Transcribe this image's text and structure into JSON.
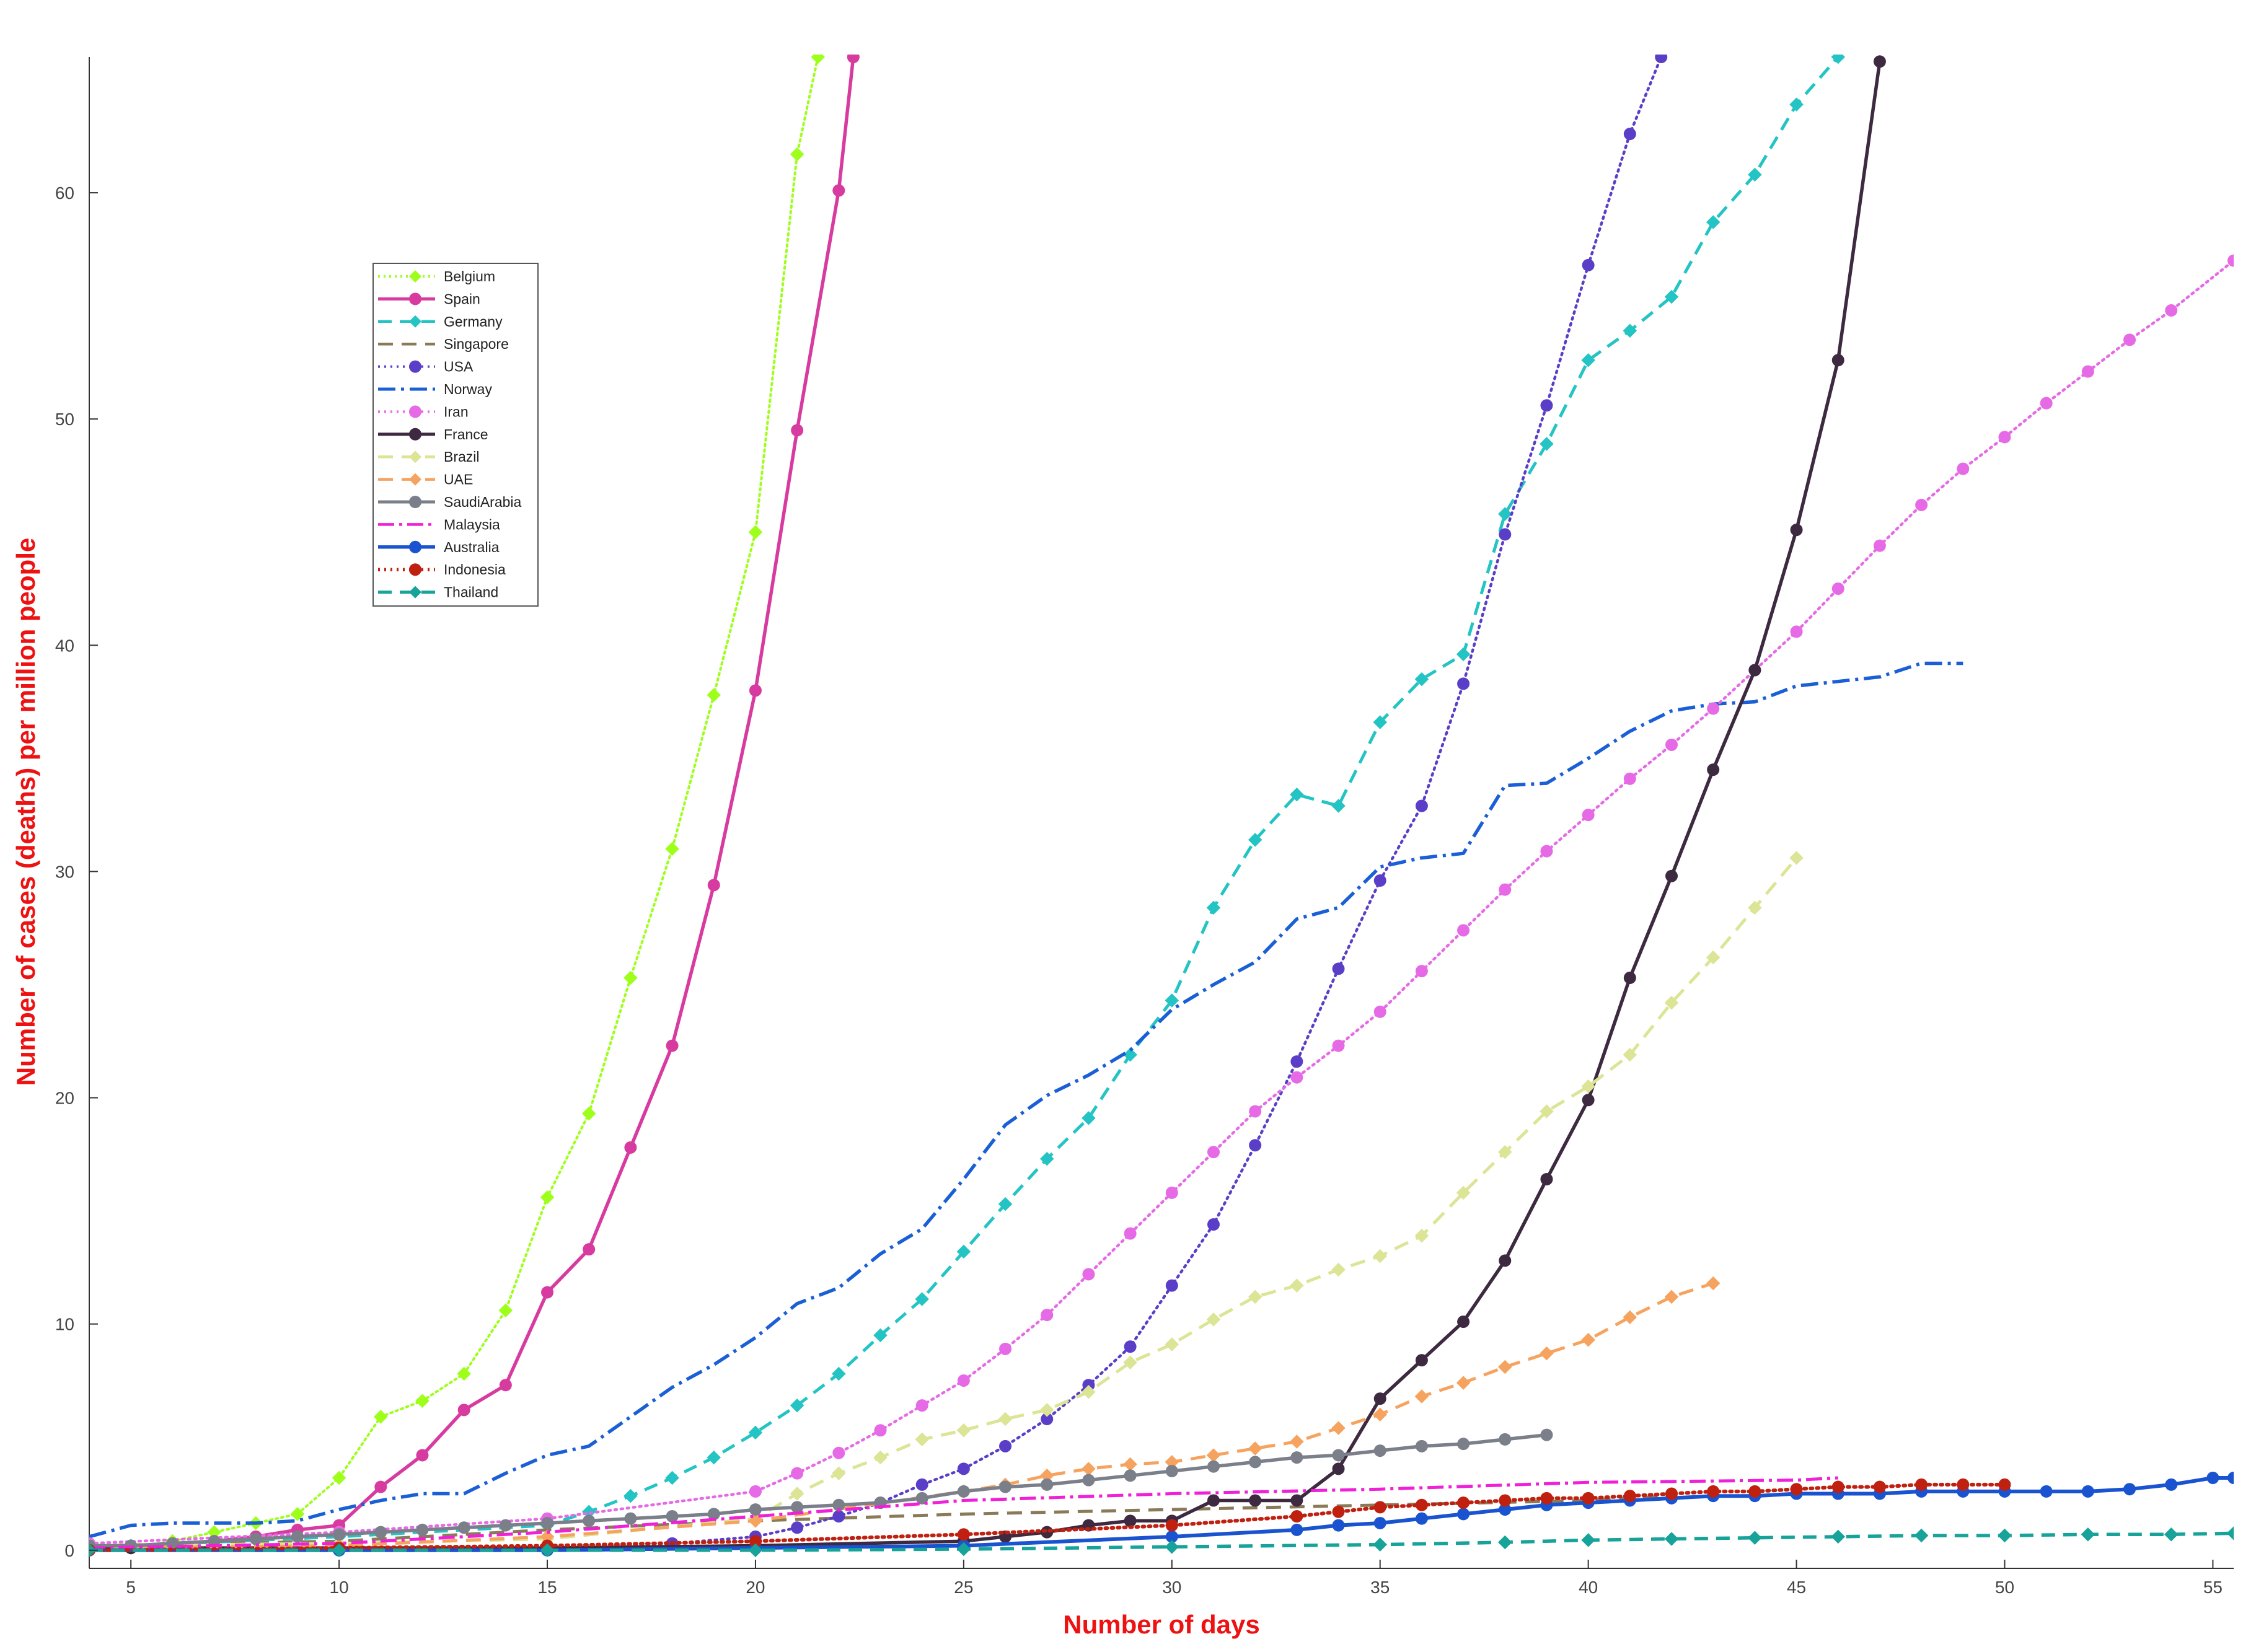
{
  "chart_data": {
    "type": "line",
    "title": "",
    "xlabel": "Number of days",
    "ylabel": "Number of cases (deaths) per million people",
    "xlim": [
      4,
      55.5
    ],
    "ylim": [
      -0.8,
      66
    ],
    "xticks": [
      "5",
      "10",
      "15",
      "20",
      "25",
      "30",
      "35",
      "40",
      "45",
      "50",
      "55"
    ],
    "yticks": [
      "0",
      "10",
      "20",
      "30",
      "40",
      "50",
      "60"
    ],
    "grid": false,
    "legend_position": "upper-left",
    "series": [
      {
        "name": "Belgium",
        "color": "#9dff1a",
        "dash": "3 6",
        "marker": "diamond",
        "width": 4,
        "x": [
          4,
          5,
          6,
          7,
          8,
          9,
          10,
          11,
          12,
          13,
          14,
          15,
          16,
          17,
          18,
          19,
          20,
          21,
          21.5
        ],
        "y": [
          0.1,
          0.1,
          0.4,
          0.8,
          1.2,
          1.6,
          3.2,
          5.9,
          6.6,
          7.8,
          10.6,
          15.6,
          19.3,
          25.3,
          31.0,
          37.8,
          45.0,
          61.7,
          66
        ]
      },
      {
        "name": "Spain",
        "color": "#d83ba0",
        "dash": "",
        "marker": "circle",
        "width": 5.5,
        "x": [
          4,
          5,
          6,
          7,
          8,
          9,
          10,
          11,
          12,
          13,
          14,
          15,
          16,
          17,
          18,
          19,
          20,
          21,
          22,
          22.35
        ],
        "y": [
          0.2,
          0.2,
          0.3,
          0.4,
          0.6,
          0.9,
          1.1,
          2.8,
          4.2,
          6.2,
          7.3,
          11.4,
          13.3,
          17.8,
          22.3,
          29.4,
          38.0,
          49.5,
          60.1,
          66
        ]
      },
      {
        "name": "Germany",
        "color": "#24c4c4",
        "dash": "22 13",
        "marker": "diamond",
        "width": 5,
        "x": [
          5,
          10,
          15,
          16,
          17,
          18,
          19,
          20,
          21,
          22,
          23,
          24,
          25,
          26,
          27,
          28,
          29,
          30,
          31,
          32,
          33,
          34,
          35,
          36,
          37,
          38,
          39,
          40,
          41,
          42,
          43,
          44,
          45,
          46
        ],
        "y": [
          0.2,
          0.6,
          1.1,
          1.7,
          2.4,
          3.2,
          4.1,
          5.2,
          6.4,
          7.8,
          9.5,
          11.1,
          13.2,
          15.3,
          17.3,
          19.1,
          21.9,
          24.3,
          28.4,
          31.4,
          33.4,
          32.9,
          36.6,
          38.5,
          39.6,
          45.8,
          48.9,
          52.6,
          53.9,
          55.4,
          58.7,
          60.8,
          63.9,
          66
        ]
      },
      {
        "name": "Singapore",
        "color": "#8a7a58",
        "dash": "24 14",
        "marker": "none",
        "width": 5,
        "x": [
          4,
          10,
          15,
          20,
          25,
          30,
          35,
          40,
          41,
          42
        ],
        "y": [
          0.2,
          0.4,
          0.9,
          1.3,
          1.6,
          1.8,
          2.0,
          2.2,
          2.3,
          2.4
        ]
      },
      {
        "name": "USA",
        "color": "#5b3ec7",
        "dash": "3 7",
        "marker": "circle",
        "width": 4.5,
        "x": [
          4,
          10,
          15,
          18,
          20,
          21,
          22,
          23,
          24,
          25,
          26,
          27,
          28,
          29,
          30,
          31,
          32,
          33,
          34,
          35,
          36,
          37,
          38,
          39,
          40,
          41,
          41.75
        ],
        "y": [
          0.0,
          0.0,
          0.1,
          0.3,
          0.6,
          1.0,
          1.5,
          2.1,
          2.9,
          3.6,
          4.6,
          5.8,
          7.3,
          9.0,
          11.7,
          14.4,
          17.9,
          21.6,
          25.7,
          29.6,
          32.9,
          38.3,
          44.9,
          50.6,
          56.8,
          62.6,
          66
        ]
      },
      {
        "name": "Norway",
        "color": "#1a5fd6",
        "dash": "28 9 5 9",
        "marker": "none",
        "width": 5.5,
        "x": [
          4,
          5,
          6,
          7,
          8,
          9,
          10,
          11,
          12,
          13,
          14,
          15,
          16,
          17,
          18,
          19,
          20,
          21,
          22,
          23,
          24,
          25,
          26,
          27,
          28,
          29,
          30,
          31,
          32,
          33,
          34,
          35,
          36,
          37,
          38,
          39,
          40,
          41,
          42,
          43,
          44,
          45,
          46,
          47,
          48,
          49
        ],
        "y": [
          0.6,
          1.1,
          1.2,
          1.2,
          1.2,
          1.3,
          1.8,
          2.2,
          2.5,
          2.5,
          3.4,
          4.2,
          4.6,
          5.9,
          7.2,
          8.2,
          9.4,
          10.9,
          11.6,
          13.1,
          14.2,
          16.4,
          18.8,
          20.1,
          21.0,
          22.1,
          23.9,
          25.0,
          26.0,
          27.9,
          28.4,
          30.2,
          30.6,
          30.8,
          33.8,
          33.9,
          35.0,
          36.2,
          37.1,
          37.4,
          37.5,
          38.2,
          38.4,
          38.6,
          39.2,
          39.2
        ]
      },
      {
        "name": "Iran",
        "color": "#e66ae6",
        "dash": "3 7",
        "marker": "circle",
        "width": 4.5,
        "x": [
          4,
          10,
          15,
          20,
          21,
          22,
          23,
          24,
          25,
          26,
          27,
          28,
          29,
          30,
          31,
          32,
          33,
          34,
          35,
          36,
          37,
          38,
          39,
          40,
          41,
          42,
          43,
          44,
          45,
          46,
          47,
          48,
          49,
          50,
          51,
          52,
          53,
          54,
          55.5
        ],
        "y": [
          0.3,
          0.8,
          1.4,
          2.6,
          3.4,
          4.3,
          5.3,
          6.4,
          7.5,
          8.9,
          10.4,
          12.2,
          14.0,
          15.8,
          17.6,
          19.4,
          20.9,
          22.3,
          23.8,
          25.6,
          27.4,
          29.2,
          30.9,
          32.5,
          34.1,
          35.6,
          37.2,
          38.9,
          40.6,
          42.5,
          44.4,
          46.2,
          47.8,
          49.2,
          50.7,
          52.1,
          53.5,
          54.8,
          57.0
        ]
      },
      {
        "name": "France",
        "color": "#3d2940",
        "dash": "",
        "marker": "circle",
        "width": 5.5,
        "x": [
          4,
          5,
          10,
          15,
          20,
          25,
          26,
          27,
          28,
          29,
          30,
          31,
          32,
          33,
          34,
          35,
          36,
          37,
          38,
          39,
          40,
          41,
          42,
          43,
          44,
          45,
          46,
          47
        ],
        "y": [
          0.1,
          0.1,
          0.1,
          0.1,
          0.2,
          0.4,
          0.6,
          0.8,
          1.1,
          1.3,
          1.3,
          2.2,
          2.2,
          2.2,
          3.6,
          6.7,
          8.4,
          10.1,
          12.8,
          16.4,
          19.9,
          25.3,
          29.8,
          34.5,
          38.9,
          45.1,
          52.6,
          65.8
        ]
      },
      {
        "name": "Brazil",
        "color": "#dce496",
        "dash": "24 14",
        "marker": "diamond",
        "width": 5,
        "x": [
          4,
          10,
          15,
          20,
          21,
          22,
          23,
          24,
          25,
          26,
          27,
          28,
          29,
          30,
          31,
          32,
          33,
          34,
          35,
          36,
          37,
          38,
          39,
          40,
          41,
          42,
          43,
          44,
          45
        ],
        "y": [
          0.2,
          0.3,
          0.5,
          1.4,
          2.5,
          3.4,
          4.1,
          4.9,
          5.3,
          5.8,
          6.2,
          7.0,
          8.3,
          9.1,
          10.2,
          11.2,
          11.7,
          12.4,
          13.0,
          13.9,
          15.8,
          17.6,
          19.4,
          20.5,
          21.9,
          24.2,
          26.2,
          28.4,
          30.6
        ]
      },
      {
        "name": "UAE",
        "color": "#f5a35f",
        "dash": "24 14",
        "marker": "diamond",
        "width": 5,
        "x": [
          4,
          10,
          15,
          20,
          25,
          26,
          27,
          28,
          29,
          30,
          31,
          32,
          33,
          34,
          35,
          36,
          37,
          38,
          39,
          40,
          41,
          42,
          43
        ],
        "y": [
          0.1,
          0.2,
          0.6,
          1.3,
          2.6,
          2.9,
          3.3,
          3.6,
          3.8,
          3.9,
          4.2,
          4.5,
          4.8,
          5.4,
          6.0,
          6.8,
          7.4,
          8.1,
          8.7,
          9.3,
          10.3,
          11.2,
          11.8
        ]
      },
      {
        "name": "SaudiArabia",
        "color": "#7a7f8a",
        "dash": "",
        "marker": "circle",
        "width": 5.5,
        "x": [
          4,
          5,
          6,
          7,
          8,
          9,
          10,
          11,
          12,
          13,
          14,
          15,
          16,
          17,
          18,
          19,
          20,
          21,
          22,
          23,
          24,
          25,
          26,
          27,
          28,
          29,
          30,
          31,
          32,
          33,
          34,
          35,
          36,
          37,
          38,
          39
        ],
        "y": [
          0.2,
          0.2,
          0.3,
          0.4,
          0.5,
          0.6,
          0.7,
          0.8,
          0.9,
          1.0,
          1.1,
          1.2,
          1.3,
          1.4,
          1.5,
          1.6,
          1.8,
          1.9,
          2.0,
          2.1,
          2.3,
          2.6,
          2.8,
          2.9,
          3.1,
          3.3,
          3.5,
          3.7,
          3.9,
          4.1,
          4.2,
          4.4,
          4.6,
          4.7,
          4.9,
          5.1
        ]
      },
      {
        "name": "Malaysia",
        "color": "#f020d8",
        "dash": "26 8 5 8",
        "marker": "none",
        "width": 5,
        "x": [
          4,
          10,
          15,
          20,
          25,
          30,
          35,
          40,
          45,
          46
        ],
        "y": [
          0.1,
          0.3,
          0.8,
          1.5,
          2.2,
          2.5,
          2.7,
          3.0,
          3.1,
          3.2
        ]
      },
      {
        "name": "Australia",
        "color": "#1a53d0",
        "dash": "",
        "marker": "circle",
        "width": 6,
        "x": [
          4,
          10,
          15,
          20,
          25,
          30,
          33,
          34,
          35,
          36,
          37,
          38,
          39,
          40,
          41,
          42,
          43,
          44,
          45,
          46,
          47,
          48,
          49,
          50,
          51,
          52,
          53,
          54,
          55,
          55.5
        ],
        "y": [
          0.0,
          0.0,
          0.0,
          0.1,
          0.2,
          0.6,
          0.9,
          1.1,
          1.2,
          1.4,
          1.6,
          1.8,
          2.0,
          2.1,
          2.2,
          2.3,
          2.4,
          2.4,
          2.5,
          2.5,
          2.5,
          2.6,
          2.6,
          2.6,
          2.6,
          2.6,
          2.7,
          2.9,
          3.2,
          3.2
        ]
      },
      {
        "name": "Indonesia",
        "color": "#c02010",
        "dash": "3 7",
        "marker": "circle",
        "width": 6,
        "x": [
          4,
          10,
          15,
          20,
          25,
          30,
          33,
          34,
          35,
          36,
          37,
          38,
          39,
          40,
          41,
          42,
          43,
          44,
          45,
          46,
          47,
          48,
          49,
          50
        ],
        "y": [
          0.0,
          0.1,
          0.2,
          0.4,
          0.7,
          1.1,
          1.5,
          1.7,
          1.9,
          2.0,
          2.1,
          2.2,
          2.3,
          2.3,
          2.4,
          2.5,
          2.6,
          2.6,
          2.7,
          2.8,
          2.8,
          2.9,
          2.9,
          2.9
        ]
      },
      {
        "name": "Thailand",
        "color": "#17a39a",
        "dash": "22 13",
        "marker": "diamond",
        "width": 5.5,
        "x": [
          4,
          10,
          15,
          20,
          25,
          30,
          35,
          38,
          40,
          42,
          44,
          46,
          48,
          50,
          52,
          54,
          55.5
        ],
        "y": [
          0.0,
          0.0,
          0.0,
          0.0,
          0.05,
          0.15,
          0.25,
          0.35,
          0.45,
          0.5,
          0.55,
          0.6,
          0.65,
          0.65,
          0.7,
          0.7,
          0.75
        ]
      }
    ]
  }
}
